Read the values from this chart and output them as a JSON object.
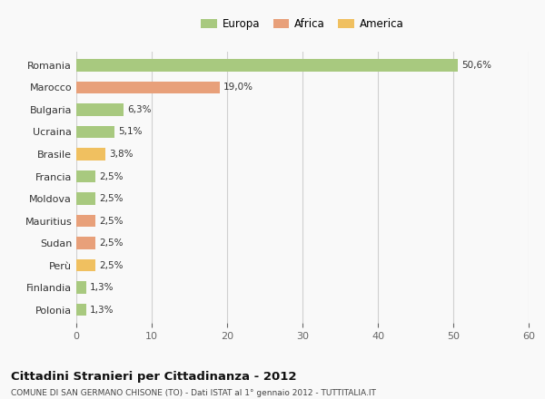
{
  "categories": [
    "Romania",
    "Marocco",
    "Bulgaria",
    "Ucraina",
    "Brasile",
    "Francia",
    "Moldova",
    "Mauritius",
    "Sudan",
    "Perù",
    "Finlandia",
    "Polonia"
  ],
  "values": [
    50.6,
    19.0,
    6.3,
    5.1,
    3.8,
    2.5,
    2.5,
    2.5,
    2.5,
    2.5,
    1.3,
    1.3
  ],
  "labels": [
    "50,6%",
    "19,0%",
    "6,3%",
    "5,1%",
    "3,8%",
    "2,5%",
    "2,5%",
    "2,5%",
    "2,5%",
    "2,5%",
    "1,3%",
    "1,3%"
  ],
  "colors": [
    "#a8c97f",
    "#e8a07a",
    "#a8c97f",
    "#a8c97f",
    "#f0c060",
    "#a8c97f",
    "#a8c97f",
    "#e8a07a",
    "#e8a07a",
    "#f0c060",
    "#a8c97f",
    "#a8c97f"
  ],
  "legend_labels": [
    "Europa",
    "Africa",
    "America"
  ],
  "legend_colors": [
    "#a8c97f",
    "#e8a07a",
    "#f0c060"
  ],
  "title": "Cittadini Stranieri per Cittadinanza - 2012",
  "subtitle": "COMUNE DI SAN GERMANO CHISONE (TO) - Dati ISTAT al 1° gennaio 2012 - TUTTITALIA.IT",
  "xlim": [
    0,
    60
  ],
  "xticks": [
    0,
    10,
    20,
    30,
    40,
    50,
    60
  ],
  "bg_color": "#f9f9f9",
  "grid_color": "#d0d0d0",
  "bar_height": 0.55
}
